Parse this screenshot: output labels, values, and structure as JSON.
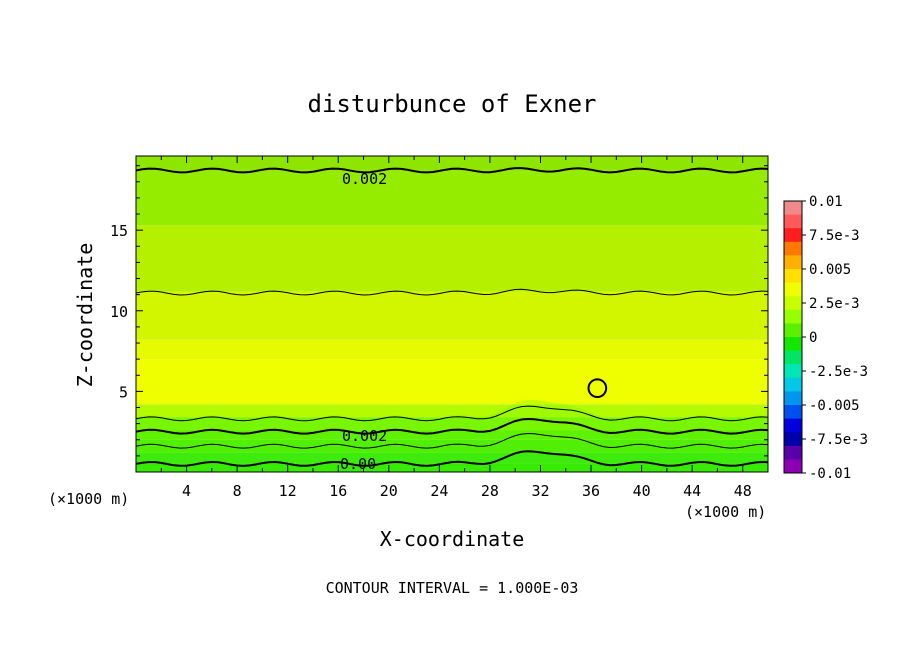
{
  "chart_data": {
    "type": "heatmap",
    "title": "disturbunce of Exner",
    "xlabel": "X-coordinate",
    "ylabel": "Z-coordinate",
    "x_unit": "(×1000 m)",
    "y_unit": "(×1000 m)",
    "xlim": [
      0,
      50
    ],
    "ylim": [
      0,
      19.6
    ],
    "x_ticks": [
      "4",
      "8",
      "12",
      "16",
      "20",
      "24",
      "28",
      "32",
      "36",
      "40",
      "44",
      "48"
    ],
    "y_ticks": [
      "5",
      "10",
      "15"
    ],
    "footer": "CONTOUR INTERVAL = 1.000E-03",
    "contour_labels": [
      "0.002",
      "0.002",
      "0.00"
    ],
    "colorbar": {
      "labels": [
        "0.01",
        "7.5e-3",
        "0.005",
        "2.5e-3",
        "0",
        "-2.5e-3",
        "-0.005",
        "-7.5e-3",
        "-0.01"
      ],
      "colors": [
        "#f08a8a",
        "#ff5a5a",
        "#ff1e1e",
        "#ff7800",
        "#ffb000",
        "#ffe000",
        "#f0ff00",
        "#c8ff00",
        "#96ff00",
        "#5af000",
        "#14e600",
        "#00e664",
        "#00e6b4",
        "#00c8e6",
        "#0096f0",
        "#0050f0",
        "#0000dc",
        "#0000aa",
        "#5a00aa",
        "#8c00b4"
      ]
    },
    "bands": [
      {
        "z0": 0.0,
        "z1": 0.5,
        "color": "#14e600"
      },
      {
        "z0": 0.5,
        "z1": 1.2,
        "color": "#1ee614"
      },
      {
        "z0": 1.2,
        "z1": 2.0,
        "color": "#3cec0a"
      },
      {
        "z0": 2.0,
        "z1": 2.6,
        "color": "#50f000"
      },
      {
        "z0": 2.6,
        "z1": 3.4,
        "color": "#78f500"
      },
      {
        "z0": 3.4,
        "z1": 4.2,
        "color": "#b4fa00"
      },
      {
        "z0": 4.2,
        "z1": 7.0,
        "color": "#f0ff00"
      },
      {
        "z0": 7.0,
        "z1": 8.2,
        "color": "#e6fa00"
      },
      {
        "z0": 8.2,
        "z1": 11.2,
        "color": "#d2f500"
      },
      {
        "z0": 11.2,
        "z1": 15.3,
        "color": "#b4f000"
      },
      {
        "z0": 15.3,
        "z1": 18.7,
        "color": "#96ec00"
      },
      {
        "z0": 18.7,
        "z1": 19.6,
        "color": "#8ee600"
      }
    ],
    "contours": [
      {
        "z": 18.7,
        "width": 2
      },
      {
        "z": 11.1,
        "width": 1
      },
      {
        "z": 3.3,
        "width": 1
      },
      {
        "z": 2.5,
        "width": 2
      },
      {
        "z": 1.6,
        "width": 1
      },
      {
        "z": 0.5,
        "width": 2
      }
    ],
    "anomaly": {
      "x": 36.5,
      "z": 5.2,
      "r": 0.7
    }
  }
}
